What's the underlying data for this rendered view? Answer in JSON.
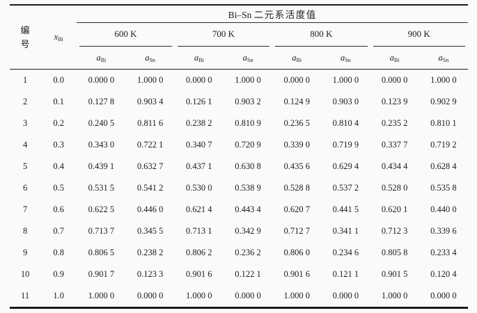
{
  "table": {
    "title_latin": "Bi–Sn",
    "title_cjk": "二元系活度值",
    "id_header_lines": [
      "编",
      "号"
    ],
    "x_header": {
      "base": "x",
      "sub": "Bi"
    },
    "temp_groups": [
      "600 K",
      "700 K",
      "800 K",
      "900 K"
    ],
    "subheader_cells": [
      {
        "base": "a",
        "sub": "Bi"
      },
      {
        "base": "a",
        "sub": "Sn"
      },
      {
        "base": "a",
        "sub": "Bi"
      },
      {
        "base": "a",
        "sub": "Sn"
      },
      {
        "base": "a",
        "sub": "Bi"
      },
      {
        "base": "a",
        "sub": "Sn"
      },
      {
        "base": "a",
        "sub": "Bi"
      },
      {
        "base": "a",
        "sub": "Sn"
      }
    ],
    "rows": [
      {
        "id": "1",
        "x": "0.0",
        "values": [
          "0.000 0",
          "1.000 0",
          "0.000 0",
          "1.000 0",
          "0.000 0",
          "1.000 0",
          "0.000 0",
          "1.000 0"
        ]
      },
      {
        "id": "2",
        "x": "0.1",
        "values": [
          "0.127 8",
          "0.903 4",
          "0.126 1",
          "0.903 2",
          "0.124 9",
          "0.903 0",
          "0.123 9",
          "0.902 9"
        ]
      },
      {
        "id": "3",
        "x": "0.2",
        "values": [
          "0.240 5",
          "0.811 6",
          "0.238 2",
          "0.810 9",
          "0.236 5",
          "0.810 4",
          "0.235 2",
          "0.810 1"
        ]
      },
      {
        "id": "4",
        "x": "0.3",
        "values": [
          "0.343 0",
          "0.722 1",
          "0.340 7",
          "0.720 9",
          "0.339 0",
          "0.719 9",
          "0.337 7",
          "0.719 2"
        ]
      },
      {
        "id": "5",
        "x": "0.4",
        "values": [
          "0.439 1",
          "0.632 7",
          "0.437 1",
          "0.630 8",
          "0.435 6",
          "0.629 4",
          "0.434 4",
          "0.628 4"
        ]
      },
      {
        "id": "6",
        "x": "0.5",
        "values": [
          "0.531 5",
          "0.541 2",
          "0.530 0",
          "0.538 9",
          "0.528 8",
          "0.537 2",
          "0.528 0",
          "0.535 8"
        ]
      },
      {
        "id": "7",
        "x": "0.6",
        "values": [
          "0.622 5",
          "0.446 0",
          "0.621 4",
          "0.443 4",
          "0.620 7",
          "0.441 5",
          "0.620 1",
          "0.440 0"
        ]
      },
      {
        "id": "8",
        "x": "0.7",
        "values": [
          "0.713 7",
          "0.345 5",
          "0.713 1",
          "0.342 9",
          "0.712 7",
          "0.341 1",
          "0.712 3",
          "0.339 6"
        ]
      },
      {
        "id": "9",
        "x": "0.8",
        "values": [
          "0.806 5",
          "0.238 2",
          "0.806 2",
          "0.236 2",
          "0.806 0",
          "0.234 6",
          "0.805 8",
          "0.233 4"
        ]
      },
      {
        "id": "10",
        "x": "0.9",
        "values": [
          "0.901 7",
          "0.123 3",
          "0.901 6",
          "0.122 1",
          "0.901 6",
          "0.121 1",
          "0.901 5",
          "0.120 4"
        ]
      },
      {
        "id": "11",
        "x": "1.0",
        "values": [
          "1.000 0",
          "0.000 0",
          "1.000 0",
          "0.000 0",
          "1.000 0",
          "0.000 0",
          "1.000 0",
          "0.000 0"
        ]
      }
    ]
  }
}
